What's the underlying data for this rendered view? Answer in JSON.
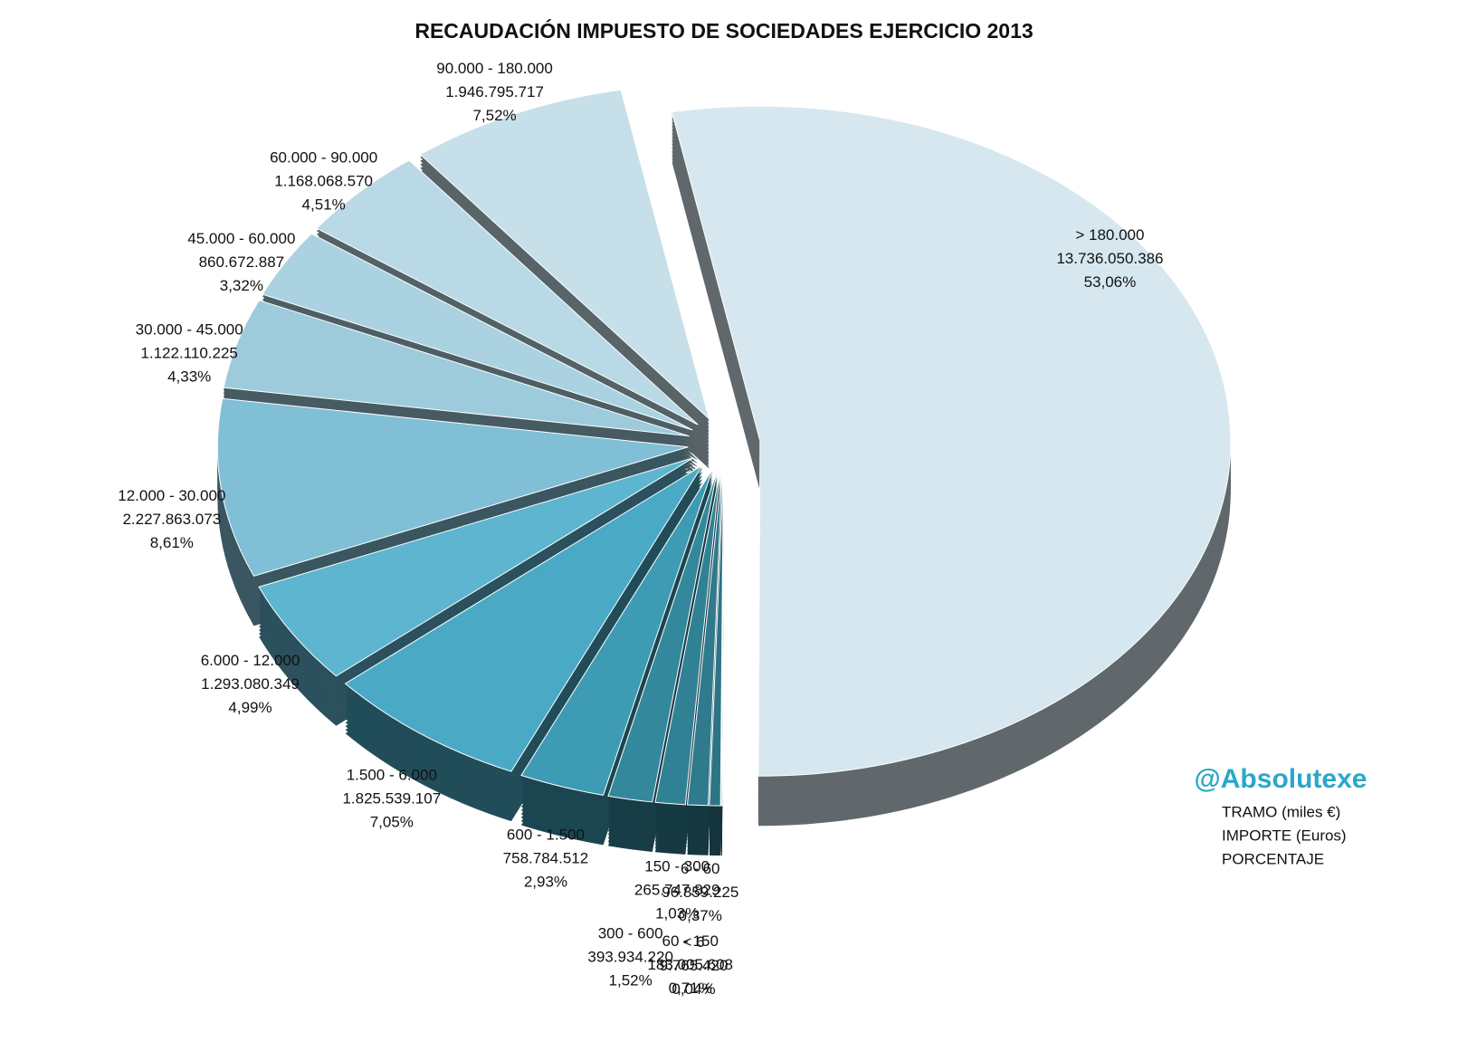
{
  "chart_data": {
    "type": "pie",
    "title": "RECAUDACIÓN IMPUESTO DE SOCIEDADES EJERCICIO 2013",
    "categories": [
      "> 180.000",
      "< 6",
      "6 - 60",
      "60 - 150",
      "150 - 300",
      "300 - 600",
      "600 - 1.500",
      "1.500 - 6.000",
      "6.000 - 12.000",
      "12.000 - 30.000",
      "30.000 - 45.000",
      "45.000 - 60.000",
      "60.000 - 90.000",
      "90.000 - 180.000"
    ],
    "values": [
      13736050386,
      9765420,
      96859225,
      183005608,
      265747829,
      393934220,
      758784512,
      1825539107,
      1293080349,
      2227863073,
      1122110225,
      860672887,
      1168068570,
      1946795717
    ],
    "value_labels": [
      "13.736.050.386",
      "9.765.420",
      "96.859.225",
      "183.005.608",
      "265.747.829",
      "393.934.220",
      "758.784.512",
      "1.825.539.107",
      "1.293.080.349",
      "2.227.863.073",
      "1.122.110.225",
      "860.672.887",
      "1.168.068.570",
      "1.946.795.717"
    ],
    "percentages": [
      {
        "value": 53.06,
        "label": "53,06%"
      },
      {
        "value": 0.04,
        "label": "0,04%"
      },
      {
        "value": 0.37,
        "label": "0,37%"
      },
      {
        "value": 0.71,
        "label": "0,71%"
      },
      {
        "value": 1.03,
        "label": "1,03%"
      },
      {
        "value": 1.52,
        "label": "1,52%"
      },
      {
        "value": 2.93,
        "label": "2,93%"
      },
      {
        "value": 7.05,
        "label": "7,05%"
      },
      {
        "value": 4.99,
        "label": "4,99%"
      },
      {
        "value": 8.61,
        "label": "8,61%"
      },
      {
        "value": 4.33,
        "label": "4,33%"
      },
      {
        "value": 3.32,
        "label": "3,32%"
      },
      {
        "value": 4.51,
        "label": "4,51%"
      },
      {
        "value": 7.52,
        "label": "7,52%"
      }
    ],
    "colors": [
      "#d6e7ef",
      "#2a6f80",
      "#2c7486",
      "#2f7a8d",
      "#318195",
      "#34889c",
      "#3d9bb4",
      "#4aaac6",
      "#5db5cf",
      "#80bfd5",
      "#9dcbdc",
      "#abd2e1",
      "#b8d9e5",
      "#c6dfe9"
    ],
    "brand": "@Absolutexe",
    "legend_lines": [
      "TRAMO (miles €)",
      "IMPORTE (Euros)",
      "PORCENTAJE"
    ]
  }
}
